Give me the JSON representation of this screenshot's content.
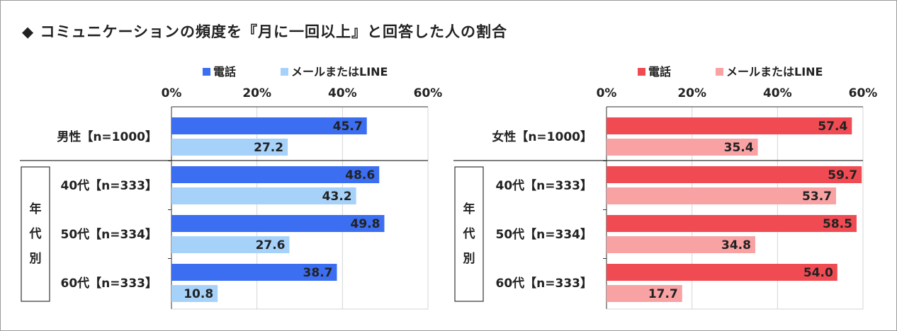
{
  "title": "◆ コミュニケーションの頻度を『月に一回以上』と回答した人の割合",
  "chart_data": [
    {
      "type": "bar",
      "orientation": "horizontal",
      "title": "",
      "xlim": [
        0,
        60
      ],
      "x_ticks": [
        "0%",
        "20%",
        "40%",
        "60%"
      ],
      "legend_position": "top",
      "group_label": "年代別",
      "categories": [
        "男性【n=1000】",
        "40代【n=333】",
        "50代【n=334】",
        "60代【n=333】"
      ],
      "series": [
        {
          "name": "電話",
          "color": "#3b6ef0",
          "values": [
            45.7,
            48.6,
            49.8,
            38.7
          ],
          "labels": [
            "45.7",
            "48.6",
            "49.8",
            "38.7"
          ]
        },
        {
          "name": "メールまたはLINE",
          "color": "#a6d2fa",
          "values": [
            27.2,
            43.2,
            27.6,
            10.8
          ],
          "labels": [
            "27.2",
            "43.2",
            "27.6",
            "10.8"
          ]
        }
      ]
    },
    {
      "type": "bar",
      "orientation": "horizontal",
      "title": "",
      "xlim": [
        0,
        60
      ],
      "x_ticks": [
        "0%",
        "20%",
        "40%",
        "60%"
      ],
      "legend_position": "top",
      "group_label": "年代別",
      "categories": [
        "女性【n=1000】",
        "40代【n=333】",
        "50代【n=334】",
        "60代【n=333】"
      ],
      "series": [
        {
          "name": "電話",
          "color": "#f04b52",
          "values": [
            57.4,
            59.7,
            58.5,
            54.0
          ],
          "labels": [
            "57.4",
            "59.7",
            "58.5",
            "54.0"
          ]
        },
        {
          "name": "メールまたはLINE",
          "color": "#f9a2a4",
          "values": [
            35.4,
            53.7,
            34.8,
            17.7
          ],
          "labels": [
            "35.4",
            "53.7",
            "34.8",
            "17.7"
          ]
        }
      ]
    }
  ]
}
